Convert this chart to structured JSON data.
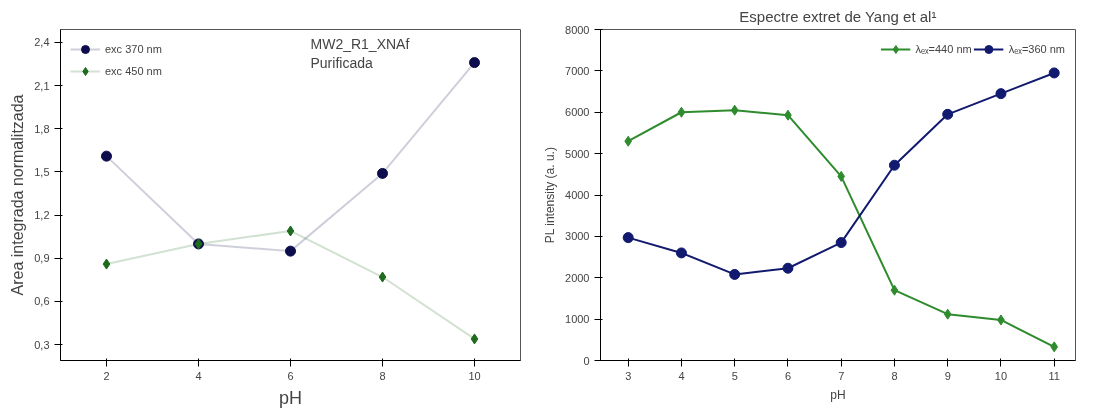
{
  "chart_data": [
    {
      "type": "line",
      "xlabel": "pH",
      "ylabel": "Area integrada normalitzada",
      "x": [
        2,
        4,
        6,
        8,
        10
      ],
      "series": [
        {
          "name": "exc 370 nm",
          "color": "#0d0d4d",
          "marker": "circle",
          "values": [
            1.61,
            1.0,
            0.95,
            1.49,
            2.26
          ]
        },
        {
          "name": "exc 450 nm",
          "color": "#1e6b1e",
          "marker": "diamond",
          "values": [
            0.86,
            1.0,
            1.09,
            0.77,
            0.34
          ]
        }
      ],
      "xlim": [
        1,
        11
      ],
      "xticks": [
        2,
        4,
        6,
        8,
        10
      ],
      "ylim": [
        0.19,
        2.49
      ],
      "yticks": [
        {
          "value": 0.3,
          "label": "0,3"
        },
        {
          "value": 0.6,
          "label": "0,6"
        },
        {
          "value": 0.9,
          "label": "0,9"
        },
        {
          "value": 1.2,
          "label": "1,2"
        },
        {
          "value": 1.5,
          "label": "1,5"
        },
        {
          "value": 1.8,
          "label": "1,8"
        },
        {
          "value": 2.1,
          "label": "2,1"
        },
        {
          "value": 2.4,
          "label": "2,4"
        }
      ],
      "annotations": [
        "MW2_R1_XNAf\nPurificada"
      ],
      "legend": "top left",
      "grid": false,
      "line_style": "solid"
    },
    {
      "type": "line",
      "title": "Espectre extret de Yang et al¹",
      "xlabel": "pH",
      "ylabel": "PL intensity (a. u.)",
      "x": [
        3,
        4,
        5,
        6,
        7,
        8,
        9,
        10,
        11
      ],
      "series": [
        {
          "name": "λₑₓ=440 nm",
          "color": "#2e8b2e",
          "marker": "diamond",
          "values": [
            5300,
            6000,
            6050,
            5930,
            4450,
            1700,
            1120,
            980,
            330
          ]
        },
        {
          "name": "λₑₓ=360 nm",
          "color": "#111a6e",
          "marker": "circle",
          "values": [
            2970,
            2600,
            2080,
            2230,
            2850,
            4720,
            5950,
            6450,
            6950
          ]
        }
      ],
      "xlim": [
        2.48,
        11.4
      ],
      "xticks": [
        3,
        4,
        5,
        6,
        7,
        8,
        9,
        10,
        11
      ],
      "ylim": [
        0,
        8000
      ],
      "yticks": [
        0,
        1000,
        2000,
        3000,
        4000,
        5000,
        6000,
        7000,
        8000
      ],
      "legend": "top right",
      "grid": false,
      "line_style": "solid"
    }
  ]
}
